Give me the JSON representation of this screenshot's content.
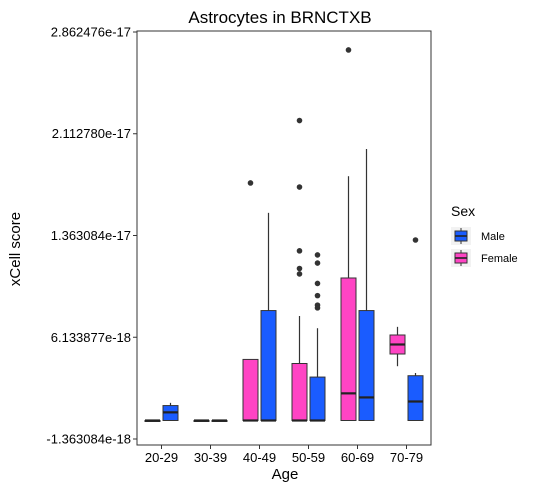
{
  "chart_data": {
    "type": "box",
    "title": "Astrocytes in BRNCTXB",
    "xlabel": "Age",
    "ylabel": "xCell score",
    "categories": [
      "20-29",
      "30-39",
      "40-49",
      "50-59",
      "60-69",
      "70-79"
    ],
    "yticks": [
      "-1.363084e-18",
      "6.133877e-18",
      "1.363084e-17",
      "2.112780e-17",
      "2.862476e-17"
    ],
    "ylim": [
      -1.363084e-18,
      2.862476e-17
    ],
    "grid": false,
    "legend": {
      "title": "Sex",
      "position": "right",
      "items": [
        {
          "name": "Male",
          "color": "#1a5cff"
        },
        {
          "name": "Female",
          "color": "#ff44c4"
        }
      ]
    },
    "series": [
      {
        "name": "Female",
        "color": "#ff44c4",
        "boxes": [
          {
            "category": "20-29",
            "min": 0,
            "q1": 0,
            "median": 0,
            "q3": 0,
            "max": 0,
            "outliers": []
          },
          {
            "category": "30-39",
            "min": 0,
            "q1": 0,
            "median": 0,
            "q3": 0,
            "max": 0,
            "outliers": []
          },
          {
            "category": "40-49",
            "min": 0,
            "q1": 0,
            "median": 0,
            "q3": 4.5e-18,
            "max": 4.5e-18,
            "outliers": [
              1.75e-17
            ]
          },
          {
            "category": "50-59",
            "min": 0,
            "q1": 0,
            "median": 0,
            "q3": 4.2e-18,
            "max": 7.7e-18,
            "outliers": [
              1.25e-17,
              1.12e-17,
              1.08e-17,
              1.72e-17,
              2.21e-17
            ]
          },
          {
            "category": "60-69",
            "min": 0,
            "q1": 0,
            "median": 2e-18,
            "q3": 1.05e-17,
            "max": 1.8e-17,
            "outliers": [
              2.73e-17
            ]
          },
          {
            "category": "70-79",
            "min": 4e-18,
            "q1": 4.9e-18,
            "median": 5.6e-18,
            "q3": 6.3e-18,
            "max": 6.9e-18,
            "outliers": []
          }
        ]
      },
      {
        "name": "Male",
        "color": "#1a5cff",
        "boxes": [
          {
            "category": "20-29",
            "min": 0,
            "q1": 0,
            "median": 6e-19,
            "q3": 1.1e-18,
            "max": 1.3e-18,
            "outliers": []
          },
          {
            "category": "30-39",
            "min": 0,
            "q1": 0,
            "median": 0,
            "q3": 0,
            "max": 0,
            "outliers": []
          },
          {
            "category": "40-49",
            "min": 0,
            "q1": 0,
            "median": 0,
            "q3": 8.1e-18,
            "max": 1.53e-17,
            "outliers": []
          },
          {
            "category": "50-59",
            "min": 0,
            "q1": 0,
            "median": 0,
            "q3": 3.2e-18,
            "max": 6.8e-18,
            "outliers": [
              1.22e-17,
              1.16e-17,
              1.01e-17,
              9.2e-18,
              8.5e-18,
              8.3e-18
            ]
          },
          {
            "category": "60-69",
            "min": 0,
            "q1": 0,
            "median": 1.7e-18,
            "q3": 8.1e-18,
            "max": 2e-17,
            "outliers": []
          },
          {
            "category": "70-79",
            "min": 0,
            "q1": 0,
            "median": 1.4e-18,
            "q3": 3.3e-18,
            "max": 3.5e-18,
            "outliers": [
              1.33e-17
            ]
          }
        ]
      }
    ]
  }
}
